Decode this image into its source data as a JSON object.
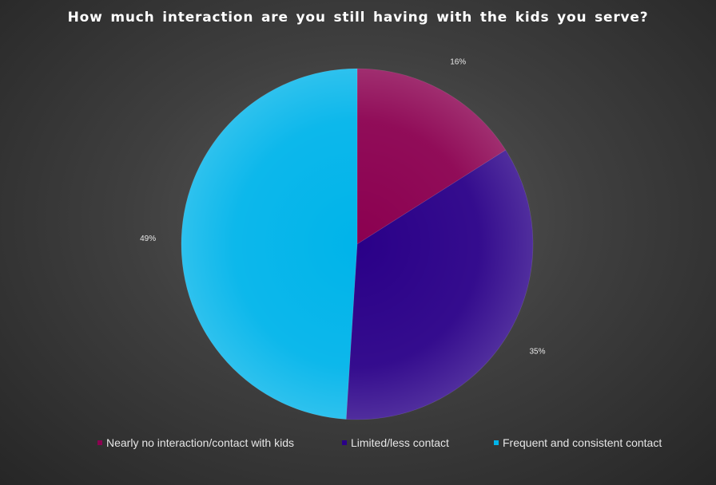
{
  "chart_data": {
    "type": "pie",
    "title": "How much interaction are you still having with the kids you serve?",
    "categories": [
      "Nearly no interaction/contact with kids",
      "Limited/less contact",
      "Frequent and consistent contact"
    ],
    "values": [
      16,
      35,
      49
    ],
    "value_labels": [
      "16%",
      "35%",
      "49%"
    ],
    "colors": [
      "#8b0050",
      "#2a0088",
      "#00b4ea"
    ],
    "legend_position": "bottom"
  }
}
